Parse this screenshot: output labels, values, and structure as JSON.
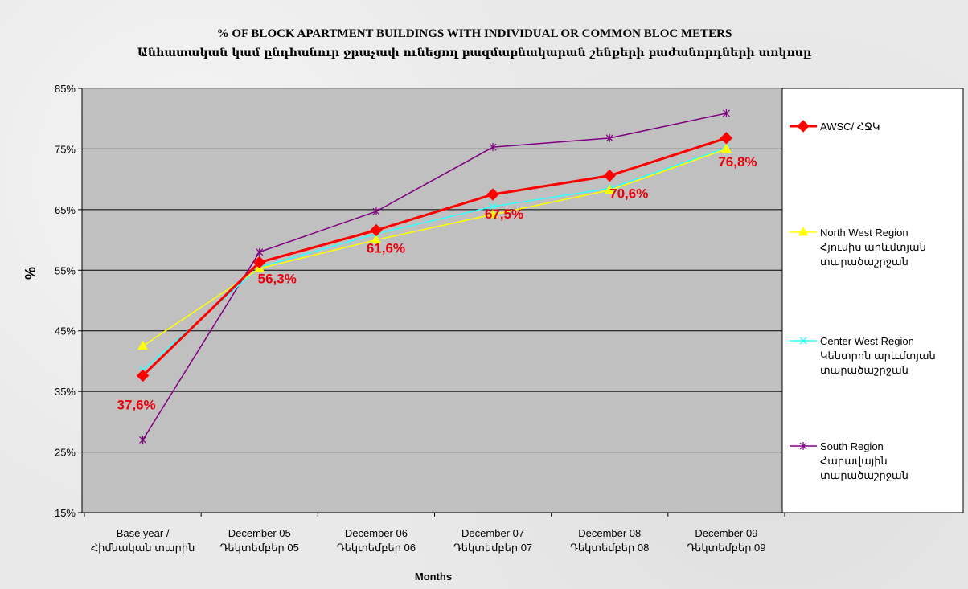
{
  "chart_data": {
    "type": "line",
    "title": "% OF BLOCK APARTMENT BUILDINGS WITH INDIVIDUAL OR COMMON BLOC METERS",
    "subtitle": "Անհատական կամ ընդհանուր ջրաչափ ունեցող բազմաբնակարան շենքերի բաժանորդների տոկոսը",
    "xlabel": "Months",
    "ylabel": "%",
    "ylim": [
      15,
      85
    ],
    "yticks": [
      "85%",
      "75%",
      "65%",
      "55%",
      "45%",
      "35%",
      "25%",
      "15%"
    ],
    "ytick_values": [
      85,
      75,
      65,
      55,
      45,
      35,
      25,
      15
    ],
    "categories": [
      [
        "Base year /",
        "Հիմնական տարին"
      ],
      [
        "December 05",
        "Դեկտեմբեր 05"
      ],
      [
        "December 06",
        "Դեկտեմբեր 06"
      ],
      [
        "December 07",
        "Դեկտեմբեր 07"
      ],
      [
        "December 08",
        "Դեկտեմբեր 08"
      ],
      [
        "December 09",
        "Դեկտեմբեր 09"
      ]
    ],
    "grid": true,
    "legend_position": "right",
    "series": [
      {
        "name": "AWSC/ ՀՋԿ",
        "name_lines": [
          "AWSC/ ՀՋԿ"
        ],
        "values": [
          37.6,
          56.3,
          61.6,
          67.5,
          70.6,
          76.8
        ],
        "color": "#ff0000",
        "marker": "diamond",
        "data_labels": [
          "37,6%",
          "56,3%",
          "61,6%",
          "67,5%",
          "70,6%",
          "76,8%"
        ]
      },
      {
        "name": "North West Region Հյուսիս արևմտյան տարածաշրջան",
        "name_lines": [
          "North West Region",
          "Հյուսիս արևմտյան",
          "տարածաշրջան"
        ],
        "values": [
          42.5,
          55.3,
          60.0,
          64.2,
          68.2,
          75.0
        ],
        "color": "#ffff00",
        "marker": "triangle"
      },
      {
        "name": "Center West Region Կենտրոն արևմտյան տարածաշրջան",
        "name_lines": [
          "Center West Region",
          "Կենտրոն արևմտյան",
          "տարածաշրջան"
        ],
        "values": [
          38.5,
          55.5,
          61.0,
          65.5,
          68.5,
          75.2
        ],
        "color": "#33ffff",
        "marker": "x"
      },
      {
        "name": "South Region Հարավային տարածաշրջան",
        "name_lines": [
          "South Region",
          "Հարավային",
          "տարածաշրջան"
        ],
        "values": [
          27.0,
          58.0,
          64.7,
          75.3,
          76.8,
          80.9
        ],
        "color": "#800080",
        "marker": "star"
      }
    ]
  }
}
